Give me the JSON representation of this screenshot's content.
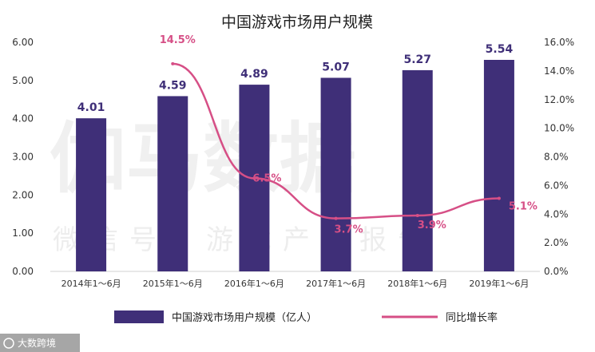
{
  "chart_data": {
    "type": "bar",
    "title": "中国游戏市场用户规模",
    "categories": [
      "2014年1～6月",
      "2015年1～6月",
      "2016年1～6月",
      "2017年1～6月",
      "2018年1～6月",
      "2019年1～6月"
    ],
    "series": [
      {
        "name": "中国游戏市场用户规模（亿人）",
        "type": "bar",
        "axis": "left",
        "values": [
          4.01,
          4.59,
          4.89,
          5.07,
          5.27,
          5.54
        ],
        "labels": [
          "4.01",
          "4.59",
          "4.89",
          "5.07",
          "5.27",
          "5.54"
        ]
      },
      {
        "name": "同比增长率",
        "type": "line",
        "axis": "right",
        "values": [
          null,
          14.5,
          6.5,
          3.7,
          3.9,
          5.1
        ],
        "labels": [
          "",
          "14.5%",
          "6.5%",
          "3.7%",
          "3.9%",
          "5.1%"
        ]
      }
    ],
    "left_axis": {
      "ylim": [
        0,
        6
      ],
      "ticks": [
        "0.00",
        "1.00",
        "2.00",
        "3.00",
        "4.00",
        "5.00",
        "6.00"
      ]
    },
    "right_axis": {
      "ylim": [
        0,
        16
      ],
      "ticks": [
        "0.0%",
        "2.0%",
        "4.0%",
        "6.0%",
        "8.0%",
        "10.0%",
        "12.0%",
        "14.0%",
        "16.0%"
      ]
    },
    "grid": false,
    "legend_position": "bottom",
    "colors": {
      "bar": "#3f2f78",
      "line": "#d64f86",
      "bar_label": "#3f2f78",
      "line_label": "#d64f86"
    }
  },
  "watermark": {
    "main": "伽马数据",
    "sub": "微信号：游戏产业报告"
  },
  "footer": {
    "text": "大数跨境"
  }
}
